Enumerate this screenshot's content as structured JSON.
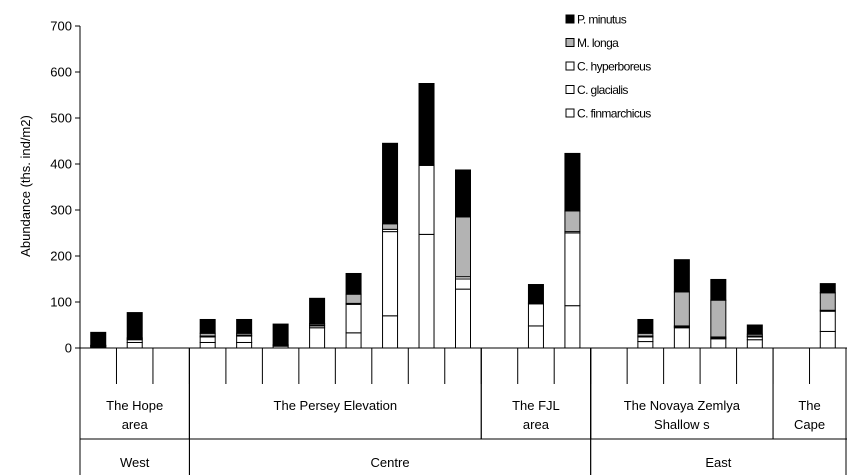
{
  "chart_data": {
    "type": "bar",
    "stacked": true,
    "ylabel": "Abundance (ths. ind/m2)",
    "ylim": [
      0,
      700
    ],
    "yticks": [
      "0",
      "100",
      "200",
      "300",
      "400",
      "500",
      "600",
      "700"
    ],
    "grid": false,
    "legend_position": "top-right",
    "colors": {
      "P. minutus": "#000000",
      "M. longa": "#b3b3b3",
      "C. hyperboreus": "#ffffff",
      "C. glacialis": "#ffffff",
      "C. finmarchicus": "#ffffff"
    },
    "stack_order": [
      "C. finmarchicus",
      "C. glacialis",
      "C. hyperboreus",
      "M. longa",
      "P. minutus"
    ],
    "legend": [
      "P. minutus",
      "M. longa",
      "C. hyperboreus",
      "C. glacialis",
      "C. finmarchicus"
    ],
    "legend_display": [
      "P. minutus",
      "M. longa",
      "C. hyperboreus",
      "C. glacialis",
      "C. finmarchicus"
    ],
    "stations": [
      {
        "C. finmarchicus": 2,
        "C. glacialis": 2,
        "C. hyperboreus": 1,
        "M. longa": 1,
        "P. minutus": 28
      },
      {
        "C. finmarchicus": 12,
        "C. glacialis": 6,
        "C. hyperboreus": 2,
        "M. longa": 2,
        "P. minutus": 55
      },
      null,
      {
        "C. finmarchicus": 12,
        "C. glacialis": 12,
        "C. hyperboreus": 2,
        "M. longa": 6,
        "P. minutus": 30
      },
      {
        "C. finmarchicus": 12,
        "C. glacialis": 14,
        "C. hyperboreus": 2,
        "M. longa": 4,
        "P. minutus": 30
      },
      {
        "C. finmarchicus": 4,
        "C. glacialis": 2,
        "C. hyperboreus": 1,
        "M. longa": 0,
        "P. minutus": 45
      },
      {
        "C. finmarchicus": 44,
        "C. glacialis": 4,
        "C. hyperboreus": 2,
        "M. longa": 3,
        "P. minutus": 55
      },
      {
        "C. finmarchicus": 33,
        "C. glacialis": 62,
        "C. hyperboreus": 2,
        "M. longa": 20,
        "P. minutus": 45
      },
      {
        "C. finmarchicus": 70,
        "C. glacialis": 183,
        "C. hyperboreus": 5,
        "M. longa": 12,
        "P. minutus": 175
      },
      {
        "C. finmarchicus": 247,
        "C. glacialis": 150,
        "C. hyperboreus": 2,
        "M. longa": 0,
        "P. minutus": 176
      },
      {
        "C. finmarchicus": 128,
        "C. glacialis": 22,
        "C. hyperboreus": 5,
        "M. longa": 130,
        "P. minutus": 102
      },
      null,
      {
        "C. finmarchicus": 48,
        "C. glacialis": 48,
        "C. hyperboreus": 2,
        "M. longa": 0,
        "P. minutus": 40
      },
      {
        "C. finmarchicus": 92,
        "C. glacialis": 158,
        "C. hyperboreus": 3,
        "M. longa": 45,
        "P. minutus": 125
      },
      null,
      {
        "C. finmarchicus": 14,
        "C. glacialis": 10,
        "C. hyperboreus": 2,
        "M. longa": 6,
        "P. minutus": 30
      },
      {
        "C. finmarchicus": 44,
        "C. glacialis": 2,
        "C. hyperboreus": 2,
        "M. longa": 74,
        "P. minutus": 70
      },
      {
        "C. finmarchicus": 20,
        "C. glacialis": 2,
        "C. hyperboreus": 2,
        "M. longa": 80,
        "P. minutus": 45
      },
      {
        "C. finmarchicus": 18,
        "C. glacialis": 6,
        "C. hyperboreus": 2,
        "M. longa": 4,
        "P. minutus": 20
      },
      null,
      {
        "C. finmarchicus": 36,
        "C. glacialis": 44,
        "C. hyperboreus": 2,
        "M. longa": 38,
        "P. minutus": 20
      }
    ],
    "x_categories": [
      {
        "lines": [
          "The Hope",
          "area"
        ],
        "from": 0,
        "to": 3
      },
      {
        "lines": [
          "The Persey Elevation"
        ],
        "from": 3,
        "to": 11
      },
      {
        "lines": [
          "The FJL",
          "area"
        ],
        "from": 11,
        "to": 14
      },
      {
        "lines": [
          "The Novaya Zemlya",
          "Shallow s"
        ],
        "from": 14,
        "to": 19
      },
      {
        "lines": [
          "The",
          "Cape"
        ],
        "from": 19,
        "to": 21
      }
    ],
    "x_regions": [
      {
        "label": "West",
        "from": 0,
        "to": 3
      },
      {
        "label": "Centre",
        "from": 3,
        "to": 14
      },
      {
        "label": "East",
        "from": 14,
        "to": 21
      }
    ]
  }
}
